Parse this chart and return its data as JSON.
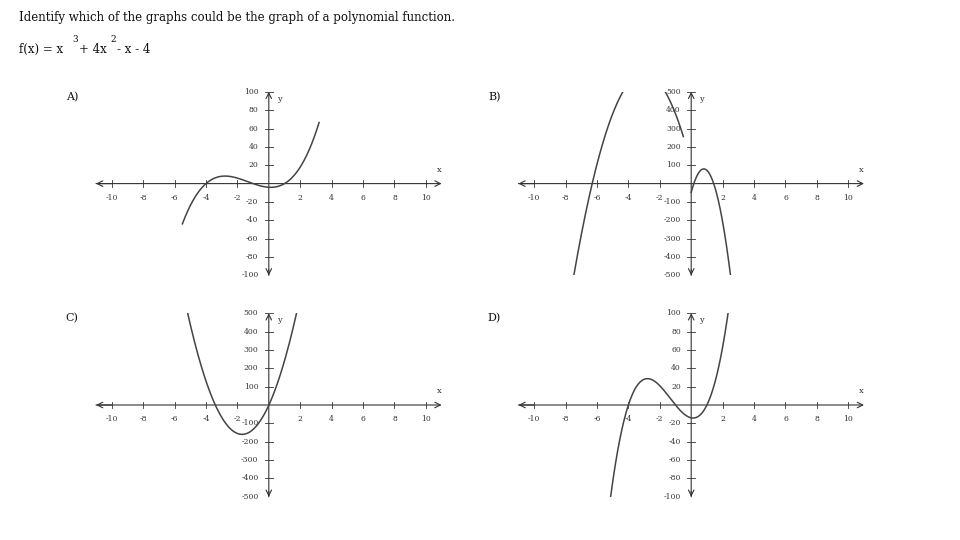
{
  "title": "Identify which of the graphs could be the graph of a polynomial function.",
  "func_label": "f(x) = x",
  "func_sup": "3",
  "func_rest": " + 4x",
  "func_sup2": "2",
  "func_rest2": " - x - 4",
  "panels": [
    {
      "label": "A)",
      "col": 0,
      "row": 0,
      "xlim": [
        -11,
        11
      ],
      "ylim": [
        -100,
        100
      ],
      "xticks": [
        -10,
        -8,
        -6,
        -4,
        -2,
        2,
        4,
        6,
        8,
        10
      ],
      "yticks": [
        -100,
        -80,
        -60,
        -40,
        -20,
        20,
        40,
        60,
        80,
        100
      ],
      "curve": "A"
    },
    {
      "label": "B)",
      "col": 1,
      "row": 0,
      "xlim": [
        -11,
        11
      ],
      "ylim": [
        -500,
        500
      ],
      "xticks": [
        -10,
        -8,
        -6,
        -4,
        -2,
        2,
        4,
        6,
        8,
        10
      ],
      "yticks": [
        -500,
        -400,
        -300,
        -200,
        -100,
        100,
        200,
        300,
        400,
        500
      ],
      "curve": "B"
    },
    {
      "label": "C)",
      "col": 0,
      "row": 1,
      "xlim": [
        -11,
        11
      ],
      "ylim": [
        -500,
        500
      ],
      "xticks": [
        -10,
        -8,
        -6,
        -4,
        -2,
        2,
        4,
        6,
        8,
        10
      ],
      "yticks": [
        -500,
        -400,
        -300,
        -200,
        -100,
        100,
        200,
        300,
        400,
        500
      ],
      "curve": "C"
    },
    {
      "label": "D)",
      "col": 1,
      "row": 1,
      "xlim": [
        -11,
        11
      ],
      "ylim": [
        -100,
        100
      ],
      "xticks": [
        -10,
        -8,
        -6,
        -4,
        -2,
        2,
        4,
        6,
        8,
        10
      ],
      "yticks": [
        -100,
        -80,
        -60,
        -40,
        -20,
        20,
        40,
        60,
        80,
        100
      ],
      "curve": "D"
    }
  ],
  "background_color": "#ffffff",
  "curve_color": "#444444",
  "axis_color": "#333333",
  "tick_color": "#333333"
}
